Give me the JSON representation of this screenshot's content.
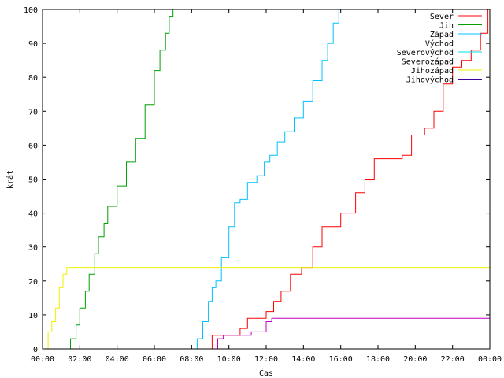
{
  "chart_data": {
    "type": "line",
    "title": "",
    "xlabel": "Čas",
    "ylabel": "krát",
    "x_unit": "hour",
    "xlim": [
      0,
      24
    ],
    "ylim": [
      0,
      100
    ],
    "grid": false,
    "legend_position": "top-right",
    "x_ticks": [
      {
        "value": 0,
        "label": "00:00"
      },
      {
        "value": 2,
        "label": "02:00"
      },
      {
        "value": 4,
        "label": "04:00"
      },
      {
        "value": 6,
        "label": "06:00"
      },
      {
        "value": 8,
        "label": "08:00"
      },
      {
        "value": 10,
        "label": "10:00"
      },
      {
        "value": 12,
        "label": "12:00"
      },
      {
        "value": 14,
        "label": "14:00"
      },
      {
        "value": 16,
        "label": "16:00"
      },
      {
        "value": 18,
        "label": "18:00"
      },
      {
        "value": 20,
        "label": "20:00"
      },
      {
        "value": 22,
        "label": "22:00"
      },
      {
        "value": 24,
        "label": "00:00"
      }
    ],
    "y_ticks": [
      0,
      10,
      20,
      30,
      40,
      50,
      60,
      70,
      80,
      90,
      100
    ],
    "series": [
      {
        "name": "Sever",
        "color": "#ff0000",
        "x": [
          9.0,
          9.1,
          9.5,
          10.5,
          10.6,
          11.0,
          11.6,
          12.0,
          12.4,
          12.8,
          13.3,
          13.9,
          14.5,
          15.0,
          15.5,
          16.0,
          16.8,
          17.3,
          17.8,
          18.5,
          19.3,
          19.8,
          20.5,
          21.0,
          21.5,
          22.0,
          22.5,
          23.0,
          23.5,
          23.9
        ],
        "y": [
          0,
          4,
          4,
          4,
          6,
          9,
          9,
          11,
          14,
          17,
          22,
          24,
          30,
          36,
          36,
          40,
          46,
          50,
          56,
          56,
          57,
          63,
          65,
          70,
          78,
          83,
          85,
          88,
          93,
          100
        ]
      },
      {
        "name": "Jih",
        "color": "#00a000",
        "x": [
          1.3,
          1.5,
          1.8,
          2.0,
          2.3,
          2.5,
          2.8,
          3.0,
          3.3,
          3.5,
          4.0,
          4.5,
          5.0,
          5.5,
          6.0,
          6.3,
          6.6,
          6.8,
          7.0
        ],
        "y": [
          0,
          3,
          7,
          12,
          17,
          22,
          28,
          33,
          37,
          42,
          48,
          55,
          62,
          72,
          82,
          88,
          93,
          98,
          100
        ]
      },
      {
        "name": "Západ",
        "color": "#00c0ff",
        "x": [
          8.1,
          8.3,
          8.6,
          8.9,
          9.1,
          9.3,
          9.6,
          10.0,
          10.3,
          10.6,
          11.0,
          11.5,
          11.9,
          12.2,
          12.6,
          13.0,
          13.5,
          14.0,
          14.5,
          15.0,
          15.3,
          15.6,
          15.9
        ],
        "y": [
          0,
          3,
          8,
          14,
          18,
          20,
          27,
          36,
          43,
          44,
          49,
          51,
          55,
          57,
          61,
          64,
          68,
          73,
          79,
          85,
          90,
          96,
          100
        ]
      },
      {
        "name": "Východ",
        "color": "#c000c0",
        "x": [
          9.3,
          9.4,
          9.7,
          10.1,
          10.9,
          11.2,
          11.8,
          12.0,
          12.3,
          24.0
        ],
        "y": [
          0,
          3,
          4,
          4,
          4,
          5,
          5,
          8,
          9,
          9
        ]
      },
      {
        "name": "Severovýchod",
        "color": "#00e0e0",
        "x": [],
        "y": []
      },
      {
        "name": "Severozápad",
        "color": "#c04000",
        "x": [],
        "y": []
      },
      {
        "name": "Jihozápad",
        "color": "#f0f000",
        "x": [
          0.1,
          0.3,
          0.5,
          0.7,
          0.9,
          1.1,
          1.3,
          24.0
        ],
        "y": [
          0,
          5,
          8,
          12,
          18,
          22,
          24,
          24
        ]
      },
      {
        "name": "Jihovýchod",
        "color": "#4000a0",
        "x": [],
        "y": []
      }
    ]
  }
}
